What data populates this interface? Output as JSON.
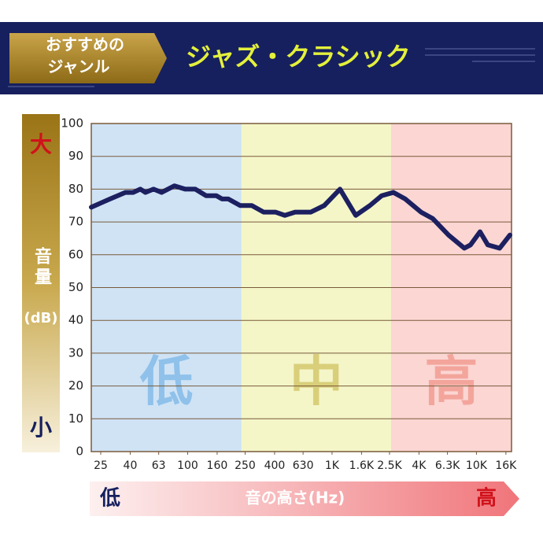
{
  "chart_data": {
    "type": "line",
    "badge": [
      "おすすめの",
      "ジャンル"
    ],
    "title": "ジャズ・クラシック",
    "y_label": [
      "音量",
      "(dB)"
    ],
    "y_top_label": "大",
    "y_bottom_label": "小",
    "x_label": "音の高さ(Hz)",
    "x_left_label": "低",
    "x_right_label": "高",
    "x_scale": "log",
    "xlim": [
      21.5,
      17500
    ],
    "ylim": [
      0,
      100
    ],
    "yticks": [
      0,
      10,
      20,
      30,
      40,
      50,
      60,
      70,
      80,
      90,
      100
    ],
    "xticks": [
      25,
      40,
      63,
      100,
      160,
      250,
      400,
      630,
      {
        "value": 1000,
        "label": "1K"
      },
      {
        "value": 1600,
        "label": "1.6K"
      },
      {
        "value": 2500,
        "label": "2.5K"
      },
      {
        "value": 4000,
        "label": "4K"
      },
      {
        "value": 6300,
        "label": "6.3K"
      },
      {
        "value": 10000,
        "label": "10K"
      },
      {
        "value": 16000,
        "label": "16K"
      }
    ],
    "grid": true,
    "bands": [
      {
        "label": "低",
        "from": 21.5,
        "to": 236,
        "color": "#cfe3f5",
        "text_color": "#8fc1ea"
      },
      {
        "label": "中",
        "from": 236,
        "to": 2564,
        "color": "#f4f6c8",
        "text_color": "#d9cf7a"
      },
      {
        "label": "高",
        "from": 2564,
        "to": 17500,
        "color": "#fbd6d3",
        "text_color": "#f3a59c"
      }
    ],
    "series": [
      {
        "color": "#1c2060",
        "x": [
          21.5,
          29,
          37,
          42,
          47,
          51,
          58,
          66,
          81,
          96,
          113,
          134,
          158,
          173,
          191,
          231,
          278,
          336,
          405,
          471,
          555,
          713,
          883,
          1135,
          1459,
          1828,
          2208,
          2661,
          3214,
          4130,
          4988,
          6412,
          8241,
          9100,
          10590,
          11990,
          14490,
          17060
        ],
        "values": [
          74.5,
          77,
          79,
          79,
          80,
          79,
          80,
          79,
          81,
          80,
          80,
          78,
          78,
          77,
          77,
          75,
          75,
          73,
          73,
          72,
          73,
          73,
          75,
          80,
          72,
          75,
          78,
          79,
          77,
          73,
          71,
          66,
          62,
          63,
          67,
          63,
          62,
          66
        ]
      }
    ]
  }
}
